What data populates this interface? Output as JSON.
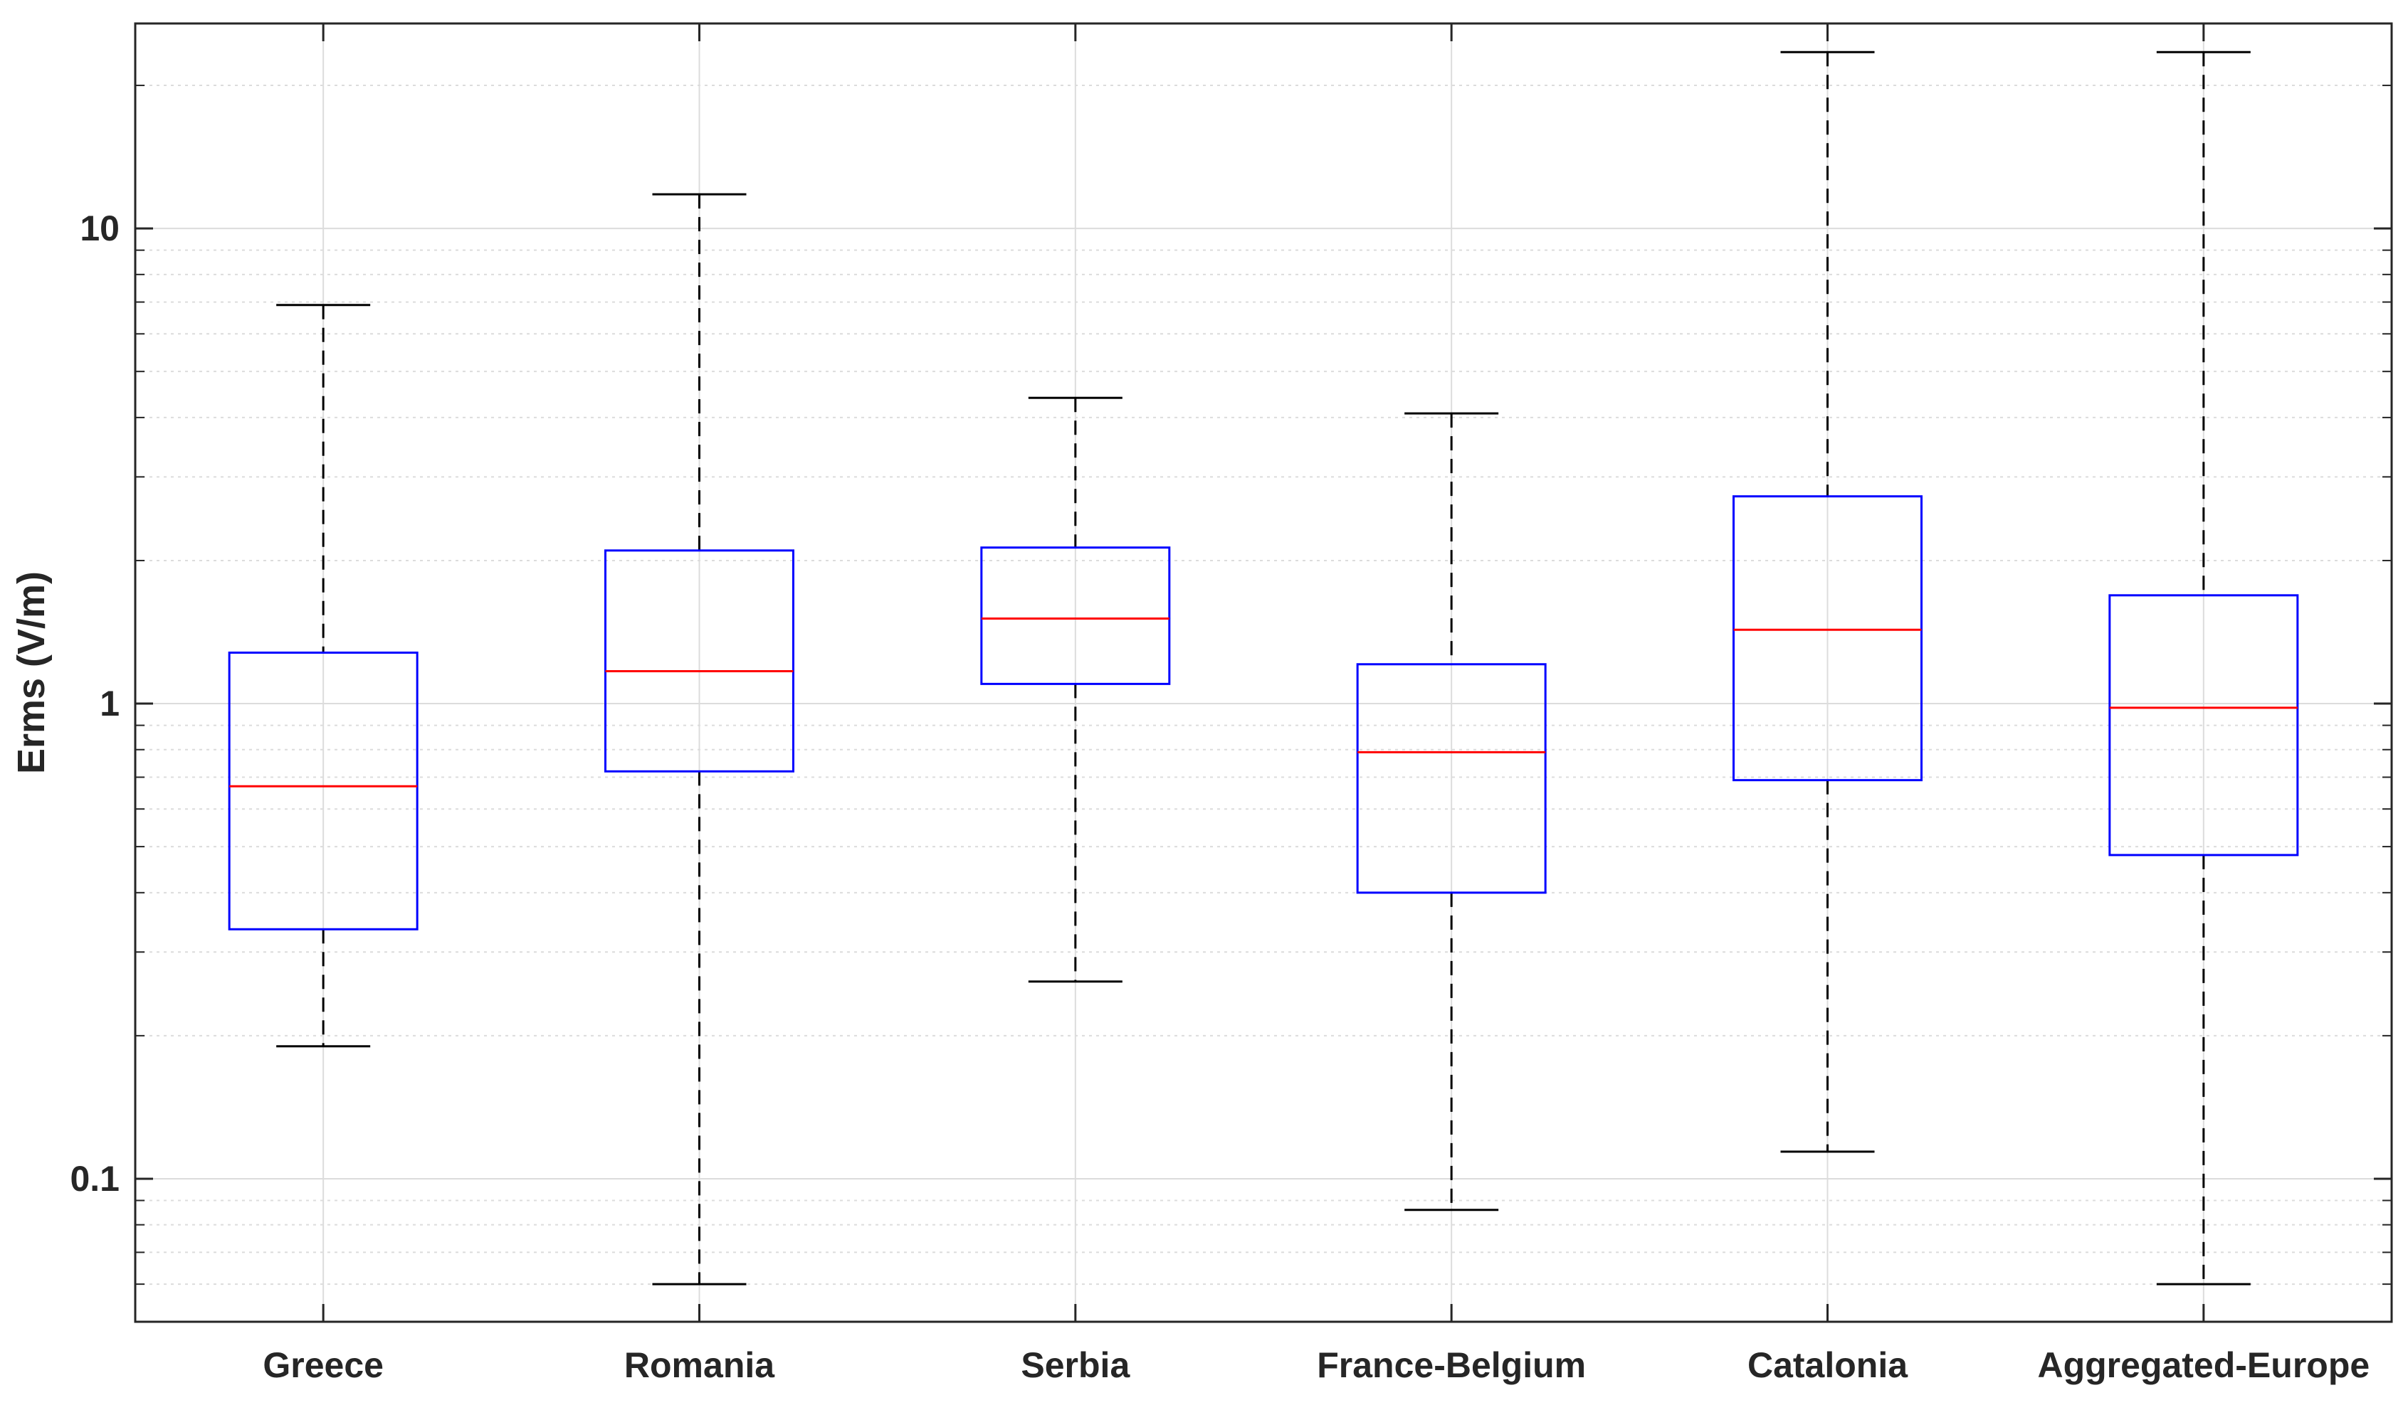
{
  "chart_data": {
    "type": "box",
    "title": "",
    "xlabel": "",
    "ylabel": "Erms (V/m)",
    "yscale": "log",
    "ylim": [
      0.05,
      27
    ],
    "grid": true,
    "y_ticks": [
      {
        "value": 0.1,
        "label": "0.1"
      },
      {
        "value": 1,
        "label": "1"
      },
      {
        "value": 10,
        "label": "10"
      }
    ],
    "categories": [
      "Greece",
      "Romania",
      "Serbia",
      "France-Belgium",
      "Catalonia",
      "Aggregated-Europe"
    ],
    "boxes": [
      {
        "name": "Greece",
        "whisker_low": 0.19,
        "q1": 0.335,
        "median": 0.67,
        "q3": 1.28,
        "whisker_high": 6.9
      },
      {
        "name": "Romania",
        "whisker_low": 0.06,
        "q1": 0.72,
        "median": 1.17,
        "q3": 2.1,
        "whisker_high": 11.8
      },
      {
        "name": "Serbia",
        "whisker_low": 0.26,
        "q1": 1.1,
        "median": 1.51,
        "q3": 2.13,
        "whisker_high": 4.4
      },
      {
        "name": "France-Belgium",
        "whisker_low": 0.086,
        "q1": 0.4,
        "median": 0.79,
        "q3": 1.21,
        "whisker_high": 4.08
      },
      {
        "name": "Catalonia",
        "whisker_low": 0.114,
        "q1": 0.69,
        "median": 1.43,
        "q3": 2.73,
        "whisker_high": 23.5
      },
      {
        "name": "Aggregated-Europe",
        "whisker_low": 0.06,
        "q1": 0.48,
        "median": 0.98,
        "q3": 1.69,
        "whisker_high": 23.5
      }
    ],
    "colors": {
      "box": "#0000ff",
      "median": "#ff0000",
      "whisker": "#000000",
      "grid": "#dcdcdc",
      "axis": "#262626"
    }
  }
}
